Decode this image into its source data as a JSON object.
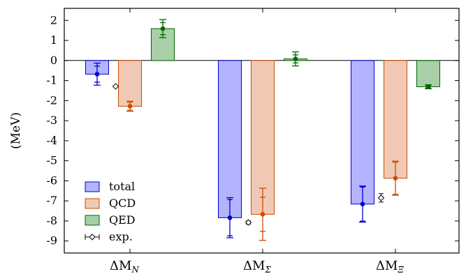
{
  "chart_data": {
    "type": "bar",
    "ylabel": "(MeV)",
    "ylim": [
      -9.6,
      2.6
    ],
    "yticks": [
      2,
      1,
      0,
      -1,
      -2,
      -3,
      -4,
      -5,
      -6,
      -7,
      -8,
      -9
    ],
    "ytick_labels": [
      "2",
      "1",
      "0",
      "-1",
      "-2",
      "-3",
      "-4",
      "-5",
      "-6",
      "-7",
      "-8",
      "-9"
    ],
    "categories": [
      {
        "main": "ΔM",
        "sub": "N"
      },
      {
        "main": "ΔM",
        "sub": "Σ"
      },
      {
        "main": "ΔM",
        "sub": "Ξ"
      }
    ],
    "series": [
      {
        "name": "total",
        "color": "#0000cc",
        "fill": "#b3b3ff",
        "values": [
          -0.68,
          -7.84,
          -7.16
        ],
        "err_inner": [
          0.4,
          0.9,
          0.85
        ],
        "err_outer": [
          0.55,
          1.0,
          0.9
        ]
      },
      {
        "name": "QCD",
        "color": "#cc4c00",
        "fill": "#f0c9b5",
        "values": [
          -2.28,
          -7.67,
          -5.87
        ],
        "err_inner": [
          0.2,
          0.85,
          0.8
        ],
        "err_outer": [
          0.25,
          1.3,
          0.85
        ]
      },
      {
        "name": "QED",
        "color": "#006600",
        "fill": "#a8cfa8",
        "values": [
          1.59,
          0.08,
          -1.31
        ],
        "err_inner": [
          0.3,
          0.2,
          0.06
        ],
        "err_outer": [
          0.45,
          0.35,
          0.1
        ]
      }
    ],
    "experiment": {
      "name": "exp.",
      "values": [
        -1.29,
        -8.08,
        -6.85
      ],
      "errors": [
        0.0,
        0.08,
        0.21
      ]
    },
    "legend_position": "bottom-left",
    "grid": false
  }
}
